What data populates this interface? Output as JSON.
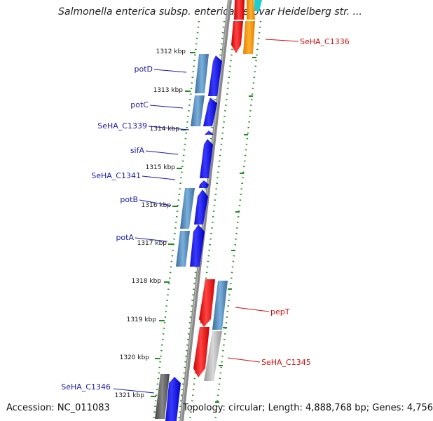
{
  "title": "Salmonella enterica subsp. enterica serovar Heidelberg str. ...",
  "footer": {
    "accession": "Accession: NC_011083",
    "topology": "Topology: circular; Length: 4,888,768 bp; Genes: 4,756"
  },
  "ticks": [
    "1312 kbp",
    "1313 kbp",
    "1314 kbp",
    "1315 kbp",
    "1316 kbp",
    "1317 kbp",
    "1318 kbp",
    "1319 kbp",
    "1320 kbp",
    "1321 kbp"
  ],
  "gene_labels": {
    "potD": "potD",
    "potC": "potC",
    "SeHA_C1339": "SeHA_C1339",
    "sifA": "sifA",
    "SeHA_C1341": "SeHA_C1341",
    "potB": "potB",
    "potA": "potA",
    "SeHA_C1346": "SeHA_C1346",
    "SeHA_C1336": "SeHA_C1336",
    "pepT": "pepT",
    "SeHA_C1345": "SeHA_C1345"
  },
  "colors": {
    "backbone": "#8a8a8a",
    "guide_dots": "#1e8c1e",
    "gene_blue": "#0000ee",
    "gene_steel": "#4f86bb",
    "gene_red": "#ee1111",
    "gene_orange": "#ff9900",
    "gene_gray": "#666666",
    "gene_lightgray": "#bbbbbb",
    "gene_cyan": "#22cccc",
    "label_blue": "#1a1aa6",
    "label_red": "#cc1111"
  }
}
